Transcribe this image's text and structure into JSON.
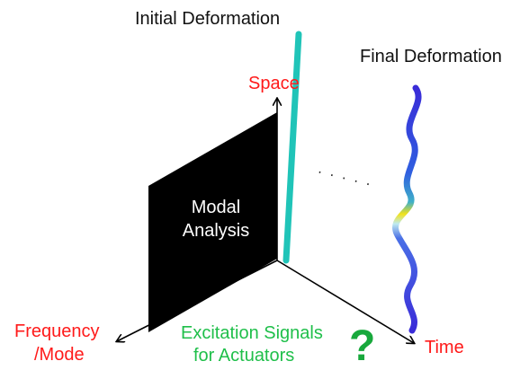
{
  "labels": {
    "initial_deformation": "Initial Deformation",
    "final_deformation": "Final Deformation",
    "space_axis": "Space",
    "time_axis": "Time",
    "frequency_axis_line1": "Frequency",
    "frequency_axis_line2": "/Mode",
    "modal_analysis_line1": "Modal",
    "modal_analysis_line2": "Analysis",
    "excitation_line1": "Excitation Signals",
    "excitation_line2": "for Actuators",
    "question_mark": "?",
    "ellipsis": "· · · · ·"
  },
  "colors": {
    "axis": "#000000",
    "axis_label": "#ff1a1a",
    "panel": "#000000",
    "initial_rod": "#20c4b8",
    "excitation_text": "#1fbf4a",
    "question_mark": "#18a83c",
    "final_wave_main": "#3a2cd8",
    "final_wave_highlight": "#f2e21a",
    "final_wave_fade": "#7fe0f0"
  }
}
